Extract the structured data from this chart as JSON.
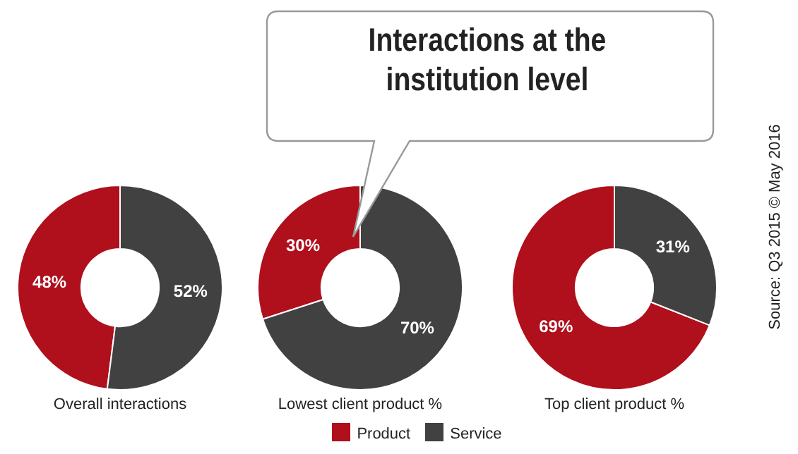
{
  "chart_data": [
    {
      "type": "donut",
      "xlabel": "Overall interactions",
      "categories": [
        null,
        null
      ],
      "values": [
        48,
        52
      ],
      "colors": [
        "#b00f1c",
        "#414141"
      ],
      "value_labels": [
        "48%",
        "52%"
      ]
    },
    {
      "type": "donut",
      "title": "Interactions at the institution level",
      "xlabel": "Lowest client product %",
      "categories": [
        "Product",
        "Service"
      ],
      "values": [
        30,
        70
      ],
      "colors": [
        "#b00f1c",
        "#414141"
      ],
      "value_labels": [
        "30%",
        "70%"
      ],
      "legend": "bottom"
    },
    {
      "type": "donut",
      "xlabel": "Top client product %",
      "categories": [
        null,
        null
      ],
      "values": [
        69,
        31
      ],
      "colors": [
        "#b00f1c",
        "#414141"
      ],
      "value_labels": [
        "69%",
        "31%"
      ],
      "annotations": [
        "Source: Q3 2015 © May 2016"
      ]
    }
  ]
}
